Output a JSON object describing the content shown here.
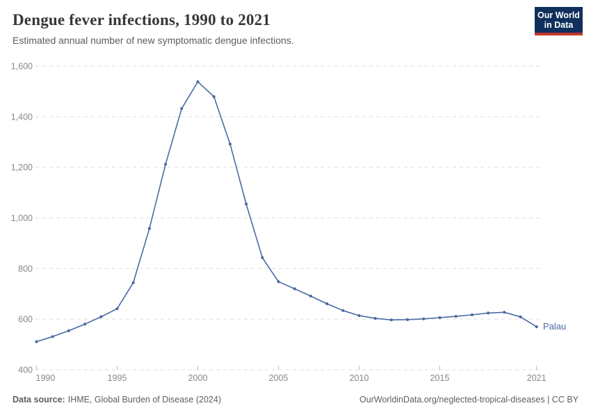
{
  "header": {
    "title": "Dengue fever infections, 1990 to 2021",
    "subtitle": "Estimated annual number of new symptomatic dengue infections.",
    "logo_line1": "Our World",
    "logo_line2": "in Data"
  },
  "chart_data": {
    "type": "line",
    "title": "Dengue fever infections, 1990 to 2021",
    "subtitle": "Estimated annual number of new symptomatic dengue infections.",
    "x": [
      1990,
      1991,
      1992,
      1993,
      1994,
      1995,
      1996,
      1997,
      1998,
      1999,
      2000,
      2001,
      2002,
      2003,
      2004,
      2005,
      2006,
      2007,
      2008,
      2009,
      2010,
      2011,
      2012,
      2013,
      2014,
      2015,
      2016,
      2017,
      2018,
      2019,
      2020,
      2021
    ],
    "series": [
      {
        "name": "Palau",
        "values": [
          511,
          531,
          554,
          580,
          609,
          641,
          744,
          958,
          1212,
          1432,
          1538,
          1479,
          1292,
          1055,
          843,
          748,
          720,
          691,
          661,
          634,
          614,
          603,
          597,
          598,
          601,
          606,
          611,
          617,
          624,
          627,
          609,
          570
        ]
      }
    ],
    "xlabel": "",
    "ylabel": "",
    "ylim": [
      400,
      1600
    ],
    "yticks": [
      400,
      600,
      800,
      1000,
      1200,
      1400,
      1600
    ],
    "xticks": [
      1990,
      1995,
      2000,
      2005,
      2010,
      2015,
      2021
    ],
    "grid": "horizontal-dashed",
    "legend_position": "end-of-line-label",
    "markers": "circle"
  },
  "footer": {
    "source_label": "Data source:",
    "source_value": "IHME, Global Burden of Disease (2024)",
    "right": "OurWorldinData.org/neglected-tropical-diseases | CC BY"
  },
  "colors": {
    "line": "#4a69a2",
    "grid": "#dedede",
    "tick": "#b8b8b8",
    "axis_text": "#878787",
    "title": "#373737",
    "subtitle": "#5b5b5b",
    "footer_text": "#5e5e5e",
    "logo_bg": "#102f5c",
    "logo_accent": "#c0392b"
  }
}
